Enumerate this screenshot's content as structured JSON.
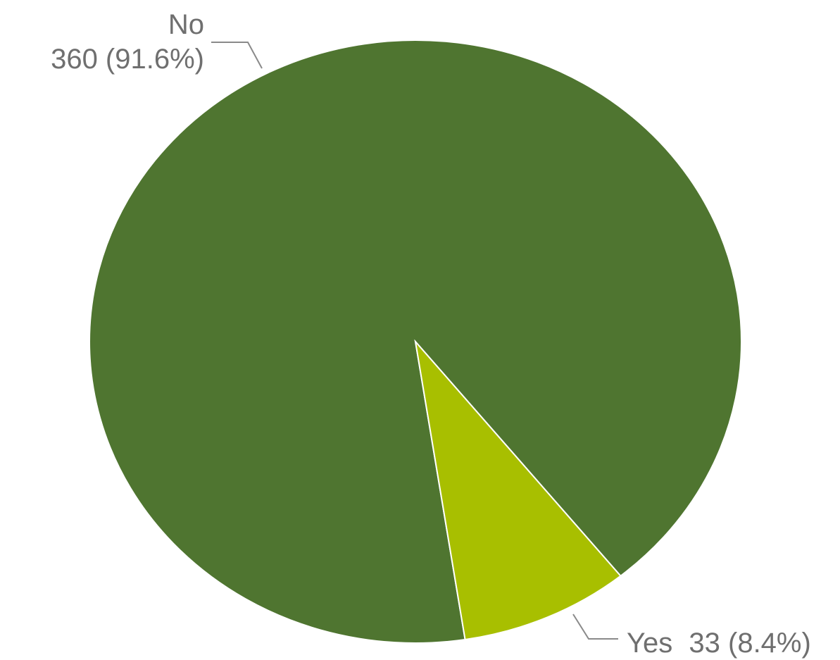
{
  "chart_data": {
    "type": "pie",
    "slices": [
      {
        "label": "No",
        "value": 360,
        "percent": 91.6,
        "value_text": "360 (91.6%)",
        "color": "#4f7530"
      },
      {
        "label": "Yes",
        "value": 33,
        "percent": 8.4,
        "value_text": "33 (8.4%)",
        "color": "#a8bf00"
      }
    ],
    "title": "",
    "legend": "none"
  }
}
